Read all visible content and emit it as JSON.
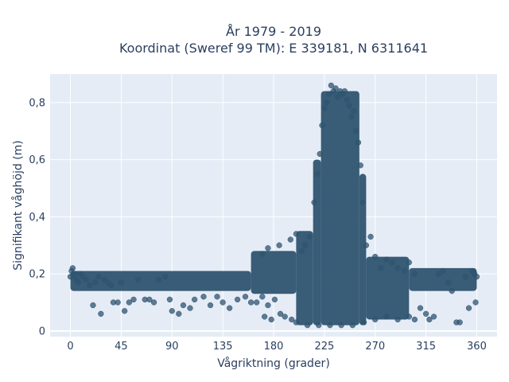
{
  "chart_data": {
    "type": "scatter",
    "title_line1": "År 1979 - 2019",
    "title_line2": "Koordinat (Sweref 99 TM): E 339181, N 6311641",
    "xlabel": "Vågriktning (grader)",
    "ylabel": "Signifikant våghöjd (m)",
    "xlim": [
      -18,
      378
    ],
    "ylim": [
      -0.02,
      0.9
    ],
    "xticks": [
      0,
      45,
      90,
      135,
      180,
      225,
      270,
      315,
      360
    ],
    "xtick_labels": [
      "0",
      "45",
      "90",
      "135",
      "180",
      "225",
      "270",
      "315",
      "360"
    ],
    "yticks": [
      0,
      0.2,
      0.4,
      0.6,
      0.8
    ],
    "ytick_labels": [
      "0",
      "0,2",
      "0,4",
      "0,6",
      "0,8"
    ],
    "grid": true,
    "marker_color": "#2f5470",
    "plot_bg": "#e5ecf6",
    "density_bands": [
      {
        "x_from": 0,
        "x_to": 160,
        "y_low": 0.14,
        "y_high": 0.21
      },
      {
        "x_from": 160,
        "x_to": 200,
        "y_low": 0.13,
        "y_high": 0.28
      },
      {
        "x_from": 200,
        "x_to": 215,
        "y_low": 0.02,
        "y_high": 0.35
      },
      {
        "x_from": 215,
        "x_to": 222,
        "y_low": 0.02,
        "y_high": 0.6
      },
      {
        "x_from": 222,
        "x_to": 256,
        "y_low": 0.02,
        "y_high": 0.84
      },
      {
        "x_from": 256,
        "x_to": 262,
        "y_low": 0.02,
        "y_high": 0.55
      },
      {
        "x_from": 262,
        "x_to": 300,
        "y_low": 0.04,
        "y_high": 0.26
      },
      {
        "x_from": 300,
        "x_to": 360,
        "y_low": 0.14,
        "y_high": 0.22
      }
    ],
    "points": [
      [
        0,
        0.19
      ],
      [
        1,
        0.21
      ],
      [
        2,
        0.22
      ],
      [
        4,
        0.2
      ],
      [
        5,
        0.18
      ],
      [
        7,
        0.17
      ],
      [
        9,
        0.2
      ],
      [
        11,
        0.19
      ],
      [
        14,
        0.18
      ],
      [
        17,
        0.16
      ],
      [
        20,
        0.09
      ],
      [
        22,
        0.17
      ],
      [
        25,
        0.19
      ],
      [
        27,
        0.06
      ],
      [
        30,
        0.18
      ],
      [
        33,
        0.17
      ],
      [
        36,
        0.16
      ],
      [
        38,
        0.1
      ],
      [
        42,
        0.1
      ],
      [
        45,
        0.17
      ],
      [
        48,
        0.07
      ],
      [
        52,
        0.1
      ],
      [
        56,
        0.11
      ],
      [
        60,
        0.18
      ],
      [
        66,
        0.11
      ],
      [
        70,
        0.11
      ],
      [
        74,
        0.1
      ],
      [
        78,
        0.18
      ],
      [
        84,
        0.19
      ],
      [
        88,
        0.11
      ],
      [
        90,
        0.07
      ],
      [
        96,
        0.06
      ],
      [
        100,
        0.09
      ],
      [
        106,
        0.08
      ],
      [
        110,
        0.11
      ],
      [
        118,
        0.12
      ],
      [
        124,
        0.09
      ],
      [
        130,
        0.12
      ],
      [
        135,
        0.1
      ],
      [
        141,
        0.08
      ],
      [
        148,
        0.11
      ],
      [
        155,
        0.12
      ],
      [
        160,
        0.1
      ],
      [
        165,
        0.1
      ],
      [
        170,
        0.12
      ],
      [
        172,
        0.05
      ],
      [
        175,
        0.09
      ],
      [
        178,
        0.04
      ],
      [
        181,
        0.11
      ],
      [
        186,
        0.06
      ],
      [
        190,
        0.05
      ],
      [
        196,
        0.04
      ],
      [
        200,
        0.03
      ],
      [
        205,
        0.28
      ],
      [
        208,
        0.3
      ],
      [
        212,
        0.33
      ],
      [
        216,
        0.45
      ],
      [
        219,
        0.55
      ],
      [
        221,
        0.62
      ],
      [
        223,
        0.72
      ],
      [
        225,
        0.78
      ],
      [
        227,
        0.8
      ],
      [
        229,
        0.83
      ],
      [
        231,
        0.86
      ],
      [
        233,
        0.84
      ],
      [
        235,
        0.85
      ],
      [
        237,
        0.82
      ],
      [
        239,
        0.84
      ],
      [
        241,
        0.83
      ],
      [
        243,
        0.84
      ],
      [
        245,
        0.81
      ],
      [
        247,
        0.79
      ],
      [
        249,
        0.75
      ],
      [
        251,
        0.77
      ],
      [
        253,
        0.7
      ],
      [
        255,
        0.66
      ],
      [
        257,
        0.58
      ],
      [
        259,
        0.45
      ],
      [
        262,
        0.3
      ],
      [
        266,
        0.33
      ],
      [
        270,
        0.26
      ],
      [
        275,
        0.22
      ],
      [
        280,
        0.25
      ],
      [
        285,
        0.24
      ],
      [
        290,
        0.22
      ],
      [
        296,
        0.21
      ],
      [
        300,
        0.24
      ],
      [
        305,
        0.2
      ],
      [
        310,
        0.08
      ],
      [
        315,
        0.06
      ],
      [
        318,
        0.04
      ],
      [
        322,
        0.05
      ],
      [
        326,
        0.2
      ],
      [
        330,
        0.21
      ],
      [
        335,
        0.17
      ],
      [
        338,
        0.14
      ],
      [
        342,
        0.03
      ],
      [
        345,
        0.03
      ],
      [
        350,
        0.19
      ],
      [
        353,
        0.08
      ],
      [
        356,
        0.21
      ],
      [
        358,
        0.2
      ],
      [
        360,
        0.19
      ],
      [
        359,
        0.1
      ],
      [
        170,
        0.27
      ],
      [
        175,
        0.29
      ],
      [
        185,
        0.3
      ],
      [
        195,
        0.32
      ],
      [
        200,
        0.34
      ],
      [
        210,
        0.02
      ],
      [
        220,
        0.02
      ],
      [
        230,
        0.02
      ],
      [
        240,
        0.02
      ],
      [
        250,
        0.02
      ],
      [
        260,
        0.03
      ],
      [
        270,
        0.04
      ],
      [
        280,
        0.05
      ],
      [
        290,
        0.04
      ],
      [
        300,
        0.05
      ],
      [
        305,
        0.04
      ]
    ]
  }
}
